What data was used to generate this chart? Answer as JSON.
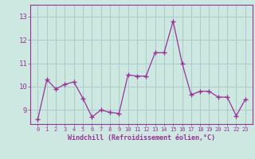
{
  "x": [
    0,
    1,
    2,
    3,
    4,
    5,
    6,
    7,
    8,
    9,
    10,
    11,
    12,
    13,
    14,
    15,
    16,
    17,
    18,
    19,
    20,
    21,
    22,
    23
  ],
  "y": [
    8.6,
    10.3,
    9.9,
    10.1,
    10.2,
    9.5,
    8.7,
    9.0,
    8.9,
    8.85,
    10.5,
    10.45,
    10.45,
    11.45,
    11.45,
    12.8,
    11.0,
    9.65,
    9.8,
    9.8,
    9.55,
    9.55,
    8.75,
    9.45
  ],
  "line_color": "#993399",
  "marker": "+",
  "bg_color": "#cce8e0",
  "grid_color": "#aacccc",
  "xlabel": "Windchill (Refroidissement éolien,°C)",
  "ylim_min": 8.4,
  "ylim_max": 13.5,
  "yticks": [
    9,
    10,
    11,
    12,
    13
  ],
  "xtick_labels": [
    "0",
    "1",
    "2",
    "3",
    "4",
    "5",
    "6",
    "7",
    "8",
    "9",
    "10",
    "11",
    "12",
    "13",
    "14",
    "15",
    "16",
    "17",
    "18",
    "19",
    "20",
    "21",
    "22",
    "23"
  ]
}
